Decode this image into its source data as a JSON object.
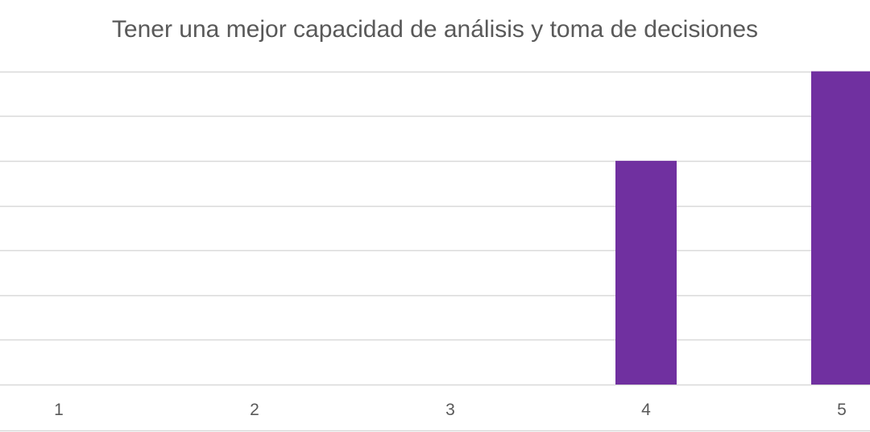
{
  "chart_data": {
    "type": "bar",
    "title": "Tener una mejor capacidad de análisis y toma de decisiones",
    "categories": [
      "1",
      "2",
      "3",
      "4",
      "5"
    ],
    "values": [
      0,
      0,
      0,
      5,
      7
    ],
    "ylim": [
      0,
      8
    ],
    "xlabel": "",
    "ylabel": "",
    "grid": true,
    "legend": "none",
    "bar_color": "#7030A0",
    "grid_color": "#D9D9D9",
    "text_color": "#595959"
  }
}
